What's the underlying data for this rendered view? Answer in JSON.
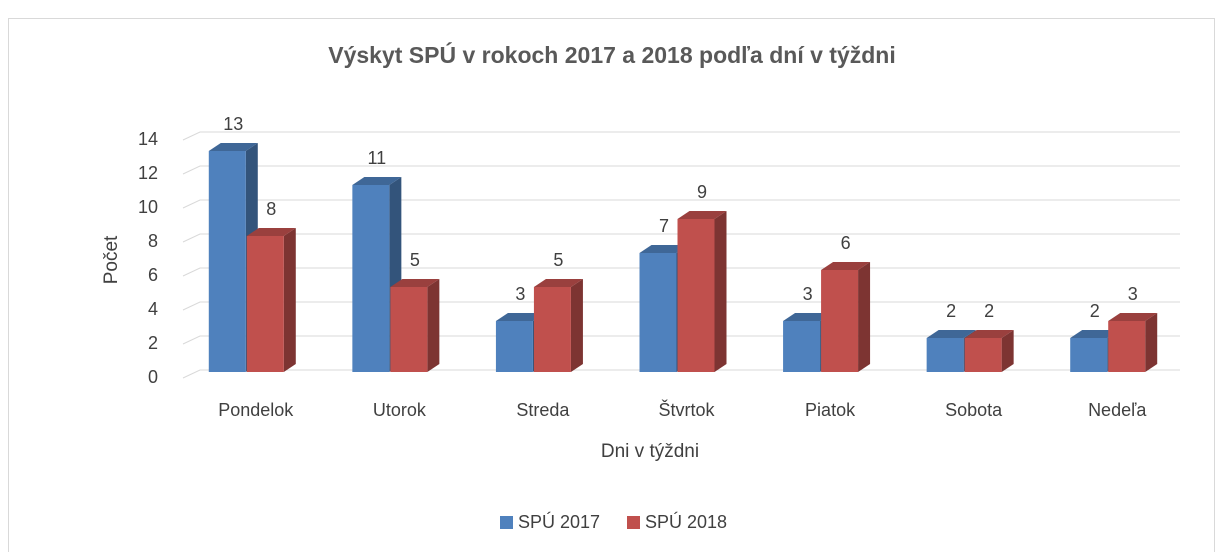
{
  "chart_data": {
    "type": "bar3d",
    "title": "Výskyt SPÚ v rokoch 2017 a 2018 podľa dní v týždni",
    "x_label": "Dni v týždni",
    "y_label": "Počet",
    "categories": [
      "Pondelok",
      "Utorok",
      "Streda",
      "Štvrtok",
      "Piatok",
      "Sobota",
      "Nedeľa"
    ],
    "series": [
      {
        "name": "SPÚ 2017",
        "color": "#4f81bd",
        "values": [
          13,
          11,
          3,
          7,
          3,
          2,
          2
        ]
      },
      {
        "name": "SPÚ 2018",
        "color": "#c0504d",
        "values": [
          8,
          5,
          5,
          9,
          6,
          2,
          3
        ]
      }
    ],
    "ylim": [
      0,
      14
    ],
    "yticks": [
      0,
      2,
      4,
      6,
      8,
      10,
      12,
      14
    ],
    "grid": true,
    "legend": "bottom"
  }
}
